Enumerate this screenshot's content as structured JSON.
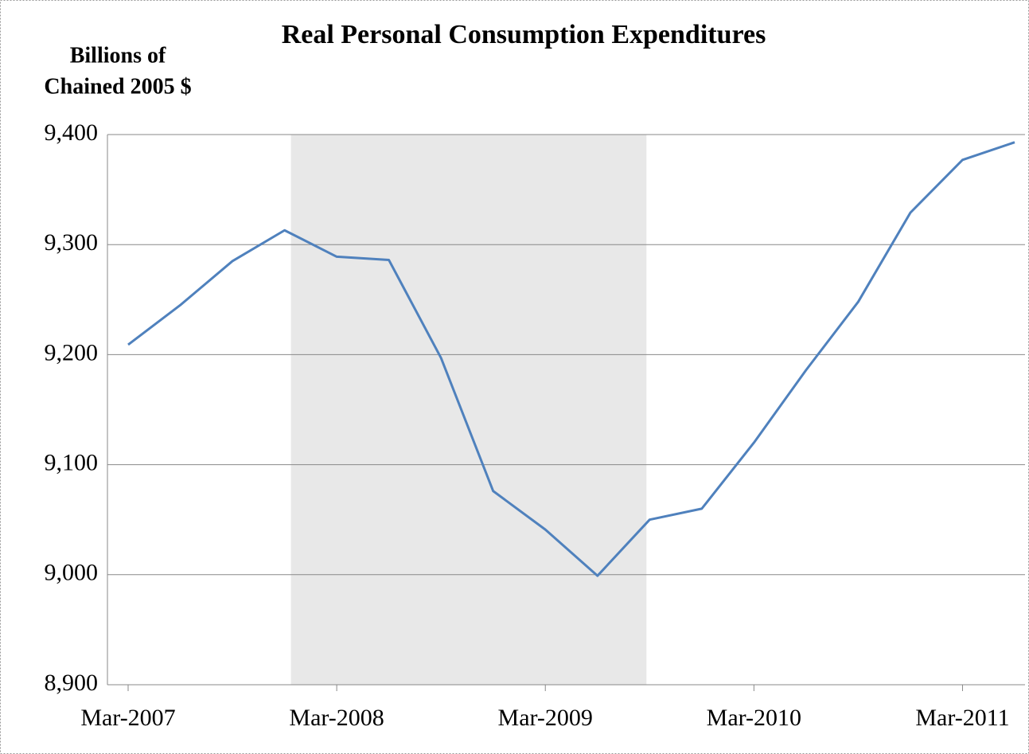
{
  "chart_data": {
    "type": "line",
    "title": "Real Personal Consumption  Expenditures",
    "y_label": [
      "Billions of",
      "Chained 2005 $"
    ],
    "categories": [
      "Mar-2007",
      null,
      null,
      null,
      "Mar-2008",
      null,
      null,
      null,
      "Mar-2009",
      null,
      null,
      null,
      "Mar-2010",
      null,
      null,
      null,
      "Mar-2011",
      null
    ],
    "series": [
      {
        "name": "Real Personal Consumption Expenditures",
        "color": "#4f81bd",
        "values": [
          9209,
          9245,
          9285,
          9313,
          9289,
          9286,
          9197,
          9076,
          9041,
          8999,
          9050,
          9060,
          9120,
          9186,
          9248,
          9329,
          9377,
          9393
        ]
      }
    ],
    "shade": [
      3,
      10
    ],
    "shade_color": "#e8e8e8",
    "ylim": [
      8900,
      9400
    ],
    "yticks": [
      {
        "value": 8900,
        "label": "8,900"
      },
      {
        "value": 9000,
        "label": "9,000"
      },
      {
        "value": 9100,
        "label": "9,100"
      },
      {
        "value": 9200,
        "label": "9,200"
      },
      {
        "value": 9300,
        "label": "9,300"
      },
      {
        "value": 9400,
        "label": "9,400"
      }
    ],
    "grid": true
  }
}
